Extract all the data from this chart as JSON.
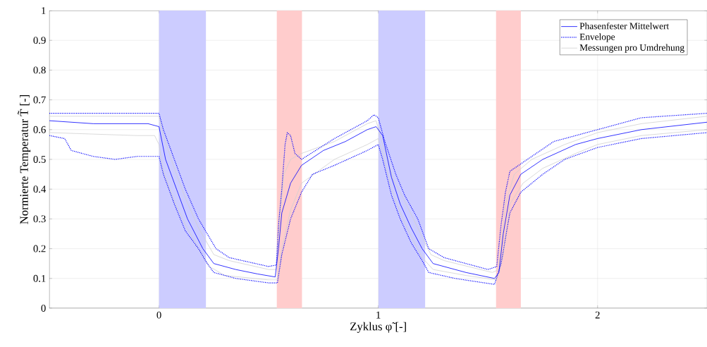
{
  "chart_data": {
    "type": "line",
    "xlabel": "Zyklus φ̃ [-]",
    "ylabel": "Normierte Temperatur T̃ [-]",
    "xlim": [
      -0.5,
      2.5
    ],
    "ylim": [
      0,
      1
    ],
    "xticks": [
      0,
      1,
      2
    ],
    "yticks": [
      0,
      {
        "value": 0.1,
        "label": "0.1"
      },
      {
        "value": 0.2,
        "label": "0.2"
      },
      {
        "value": 0.3,
        "label": "0.3"
      },
      {
        "value": 0.4,
        "label": "0.4"
      },
      {
        "value": 0.5,
        "label": "0.5"
      },
      {
        "value": 0.6,
        "label": "0.6"
      },
      {
        "value": 0.7,
        "label": "0.7"
      },
      {
        "value": 0.8,
        "label": "0.8"
      },
      {
        "value": 0.9,
        "label": "0.9"
      },
      1
    ],
    "grid": true,
    "legend": "top right",
    "bands": [
      {
        "axis": "x",
        "from": 0,
        "to": 0.214,
        "color": "#ccccff"
      },
      {
        "axis": "x",
        "from": 0.537,
        "to": 0.652,
        "color": "#ffcccc"
      },
      {
        "axis": "x",
        "from": 1,
        "to": 1.214,
        "color": "#ccccff"
      },
      {
        "axis": "x",
        "from": 1.537,
        "to": 1.65,
        "color": "#ffcccc"
      }
    ],
    "series": [
      {
        "name": "Phasenfester Mittelwert",
        "color": "#0000ff",
        "line_style": "solid",
        "x": [
          -0.5,
          -0.3,
          -0.05,
          0.0,
          0.03,
          0.08,
          0.13,
          0.2,
          0.25,
          0.35,
          0.45,
          0.53,
          0.545,
          0.56,
          0.6,
          0.65,
          0.75,
          0.85,
          0.95,
          0.99,
          1.02,
          1.06,
          1.1,
          1.15,
          1.2,
          1.25,
          1.3,
          1.4,
          1.53,
          1.55,
          1.57,
          1.6,
          1.65,
          1.75,
          1.9,
          2.0,
          2.2,
          2.5
        ],
        "values": [
          0.63,
          0.62,
          0.62,
          0.61,
          0.5,
          0.4,
          0.3,
          0.2,
          0.15,
          0.13,
          0.115,
          0.105,
          0.2,
          0.32,
          0.42,
          0.48,
          0.53,
          0.56,
          0.6,
          0.61,
          0.58,
          0.44,
          0.35,
          0.27,
          0.2,
          0.15,
          0.14,
          0.12,
          0.1,
          0.12,
          0.25,
          0.38,
          0.45,
          0.5,
          0.55,
          0.57,
          0.6,
          0.625
        ]
      },
      {
        "name": "Envelope",
        "color": "#0000ff",
        "line_style": "dotted",
        "x": [
          -0.5,
          0.0,
          0.02,
          0.07,
          0.12,
          0.18,
          0.26,
          0.32,
          0.5,
          0.535,
          0.545,
          0.56,
          0.575,
          0.585,
          0.6,
          0.62,
          0.65,
          0.8,
          0.95,
          0.98,
          1.0,
          1.03,
          1.08,
          1.12,
          1.18,
          1.23,
          1.3,
          1.5,
          1.54,
          1.56,
          1.58,
          1.6,
          1.7,
          1.8,
          2.0,
          2.2,
          2.5
        ],
        "values": [
          0.655,
          0.655,
          0.6,
          0.5,
          0.4,
          0.3,
          0.2,
          0.17,
          0.14,
          0.145,
          0.28,
          0.4,
          0.55,
          0.59,
          0.58,
          0.52,
          0.5,
          0.57,
          0.63,
          0.65,
          0.64,
          0.56,
          0.45,
          0.38,
          0.3,
          0.2,
          0.17,
          0.13,
          0.14,
          0.28,
          0.39,
          0.46,
          0.51,
          0.56,
          0.6,
          0.64,
          0.655
        ]
      },
      {
        "color": "#0000ff",
        "line_style": "dotted",
        "x": [
          -0.5,
          -0.43,
          -0.4,
          -0.3,
          -0.2,
          -0.1,
          0.0,
          0.02,
          0.07,
          0.12,
          0.18,
          0.22,
          0.25,
          0.35,
          0.5,
          0.54,
          0.56,
          0.6,
          0.65,
          0.7,
          0.8,
          0.95,
          1.0,
          1.02,
          1.06,
          1.1,
          1.15,
          1.2,
          1.23,
          1.35,
          1.53,
          1.56,
          1.6,
          1.65,
          1.75,
          1.85,
          2.0,
          2.2,
          2.5
        ],
        "values": [
          0.58,
          0.57,
          0.53,
          0.51,
          0.5,
          0.51,
          0.51,
          0.45,
          0.35,
          0.26,
          0.2,
          0.15,
          0.12,
          0.1,
          0.085,
          0.085,
          0.18,
          0.3,
          0.39,
          0.45,
          0.48,
          0.53,
          0.55,
          0.5,
          0.38,
          0.3,
          0.22,
          0.16,
          0.12,
          0.1,
          0.08,
          0.15,
          0.32,
          0.39,
          0.45,
          0.5,
          0.54,
          0.57,
          0.59
        ]
      },
      {
        "name": "Messungen pro Umdrehung",
        "color": "#d0d0d0",
        "line_style": "solid",
        "x": [
          -0.5,
          0.0,
          0.02,
          0.07,
          0.12,
          0.18,
          0.25,
          0.32,
          0.5,
          0.535,
          0.55,
          0.57,
          0.6,
          0.65,
          0.8,
          0.95,
          0.99,
          1.02,
          1.07,
          1.12,
          1.18,
          1.24,
          1.3,
          1.52,
          1.55,
          1.58,
          1.62,
          1.7,
          1.85,
          2.0,
          2.2,
          2.5
        ],
        "values": [
          0.645,
          0.645,
          0.58,
          0.47,
          0.37,
          0.27,
          0.18,
          0.16,
          0.13,
          0.13,
          0.3,
          0.45,
          0.5,
          0.52,
          0.56,
          0.62,
          0.63,
          0.55,
          0.43,
          0.36,
          0.27,
          0.18,
          0.16,
          0.12,
          0.13,
          0.35,
          0.45,
          0.5,
          0.55,
          0.59,
          0.62,
          0.645
        ]
      },
      {
        "color": "#d0d0d0",
        "line_style": "solid",
        "x": [
          -0.5,
          -0.3,
          -0.1,
          -0.02,
          0.0,
          0.02,
          0.07,
          0.12,
          0.18,
          0.23,
          0.3,
          0.5,
          0.54,
          0.56,
          0.6,
          0.65,
          0.8,
          0.95,
          1.0,
          1.02,
          1.06,
          1.1,
          1.15,
          1.2,
          1.25,
          1.4,
          1.54,
          1.57,
          1.6,
          1.66,
          1.75,
          1.9,
          2.0,
          2.2,
          2.5
        ],
        "values": [
          0.59,
          0.585,
          0.58,
          0.58,
          0.55,
          0.46,
          0.36,
          0.28,
          0.2,
          0.14,
          0.11,
          0.095,
          0.095,
          0.2,
          0.33,
          0.42,
          0.5,
          0.55,
          0.57,
          0.52,
          0.4,
          0.32,
          0.24,
          0.17,
          0.13,
          0.11,
          0.095,
          0.18,
          0.35,
          0.42,
          0.47,
          0.52,
          0.55,
          0.58,
          0.6
        ]
      }
    ]
  }
}
